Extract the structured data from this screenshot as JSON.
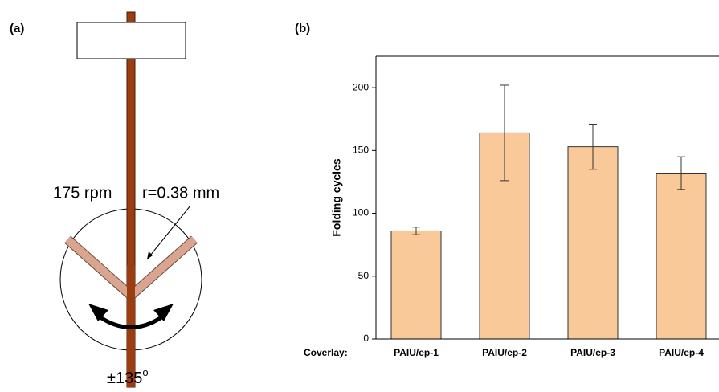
{
  "panel_a": {
    "panel_label": "(a)",
    "speed": "175 rpm",
    "radius": "r=0.38 mm",
    "angle": "±135",
    "angle_unit": "o"
  },
  "chart_data": {
    "type": "bar",
    "panel_label": "(b)",
    "ylabel": "Folding cycles",
    "xlabel": "Coverlay:",
    "categories": [
      "PAIU/ep-1",
      "PAIU/ep-2",
      "PAIU/ep-3",
      "PAIU/ep-4"
    ],
    "values": [
      86,
      164,
      153,
      132
    ],
    "errors": [
      3,
      38,
      18,
      13
    ],
    "color": "#fac999",
    "ylim": [
      0,
      225
    ],
    "yticks": [
      0,
      50,
      100,
      150,
      200
    ]
  }
}
